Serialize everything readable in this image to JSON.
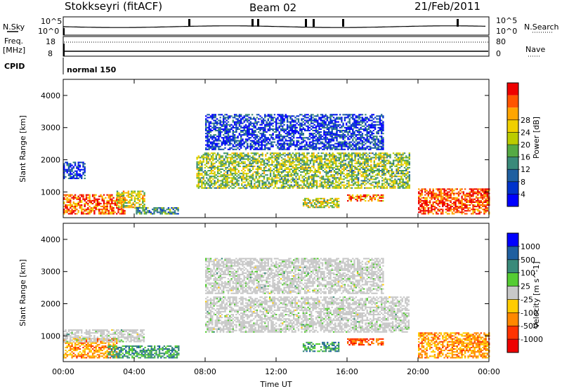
{
  "header": {
    "station": "Stokkseyri (fitACF)",
    "beam": "Beam 02",
    "date": "21/Feb/2011"
  },
  "strip": {
    "nsky_label": "N.Sky",
    "nsearch_label": "N.Search",
    "freq_label_1": "Freq.",
    "freq_label_2": "[MHz]",
    "nave_label": "Nave",
    "cpid_label": "CPID",
    "left_ticks": [
      "10^5",
      "10^0",
      "18",
      "8"
    ],
    "right_ticks": [
      "10^5",
      "10^0",
      "80",
      "0"
    ],
    "cpid_value": "normal 150"
  },
  "colors": {
    "power_scale": [
      "#0000ff",
      "#0033cc",
      "#1f5fa0",
      "#3a8a7a",
      "#55aa44",
      "#bbcc00",
      "#f0d000",
      "#ffa500",
      "#ff5500",
      "#ee0000"
    ],
    "velocity_scale": [
      "#0000ff",
      "#1f5fa0",
      "#3a8a7a",
      "#55cc33",
      "#c8c8c8",
      "#ffcc00",
      "#ff8800",
      "#ff3300",
      "#ee0000"
    ]
  },
  "chart_data": [
    {
      "type": "heatmap",
      "panel": "power",
      "xlabel": "",
      "ylabel": "Slant Range [km]",
      "x_range": [
        "00:00",
        "00:00"
      ],
      "ylim": [
        200,
        4500
      ],
      "y_ticks": [
        1000,
        2000,
        3000,
        4000
      ],
      "colorbar_label": "Power [dB]",
      "colorbar_ticks": [
        4,
        8,
        12,
        16,
        20,
        24,
        28
      ],
      "regions": [
        {
          "t0": 0.0,
          "t1": 3.5,
          "r0": 300,
          "r1": 900,
          "level": 0.85
        },
        {
          "t0": 0.0,
          "t1": 1.2,
          "r0": 1400,
          "r1": 1900,
          "level": 0.15
        },
        {
          "t0": 3.0,
          "t1": 4.6,
          "r0": 500,
          "r1": 1000,
          "level": 0.6
        },
        {
          "t0": 4.0,
          "t1": 6.5,
          "r0": 300,
          "r1": 500,
          "level": 0.35
        },
        {
          "t0": 7.5,
          "t1": 19.5,
          "r0": 1100,
          "r1": 2200,
          "level": 0.5
        },
        {
          "t0": 8.0,
          "t1": 18.0,
          "r0": 2300,
          "r1": 3400,
          "level": 0.15
        },
        {
          "t0": 13.5,
          "t1": 15.5,
          "r0": 500,
          "r1": 800,
          "level": 0.55
        },
        {
          "t0": 16.0,
          "t1": 18.0,
          "r0": 700,
          "r1": 900,
          "level": 0.8
        },
        {
          "t0": 20.0,
          "t1": 24.0,
          "r0": 300,
          "r1": 1100,
          "level": 0.9
        }
      ]
    },
    {
      "type": "heatmap",
      "panel": "velocity",
      "xlabel": "Time UT",
      "ylabel": "Slant Range [km]",
      "x_ticks": [
        "00:00",
        "04:00",
        "08:00",
        "12:00",
        "16:00",
        "20:00",
        "00:00"
      ],
      "ylim": [
        200,
        4500
      ],
      "y_ticks": [
        1000,
        2000,
        3000,
        4000
      ],
      "colorbar_label": "Velocity [m s^-1]",
      "colorbar_ticks": [
        1000,
        500,
        100,
        25,
        -25,
        -100,
        -500,
        -1000
      ],
      "regions": [
        {
          "t0": 0.0,
          "t1": 3.0,
          "r0": 300,
          "r1": 900,
          "level": 0.7
        },
        {
          "t0": 2.5,
          "t1": 6.5,
          "r0": 300,
          "r1": 700,
          "level": 0.3
        },
        {
          "t0": 0.0,
          "t1": 4.5,
          "r0": 800,
          "r1": 1200,
          "level": 0.45
        },
        {
          "t0": 8.0,
          "t1": 19.5,
          "r0": 1100,
          "r1": 2200,
          "level": 0.45
        },
        {
          "t0": 8.0,
          "t1": 18.0,
          "r0": 2300,
          "r1": 3400,
          "level": 0.45
        },
        {
          "t0": 13.5,
          "t1": 15.5,
          "r0": 500,
          "r1": 800,
          "level": 0.3
        },
        {
          "t0": 16.0,
          "t1": 18.0,
          "r0": 700,
          "r1": 900,
          "level": 0.8
        },
        {
          "t0": 20.0,
          "t1": 24.0,
          "r0": 300,
          "r1": 1100,
          "level": 0.7
        }
      ]
    }
  ]
}
